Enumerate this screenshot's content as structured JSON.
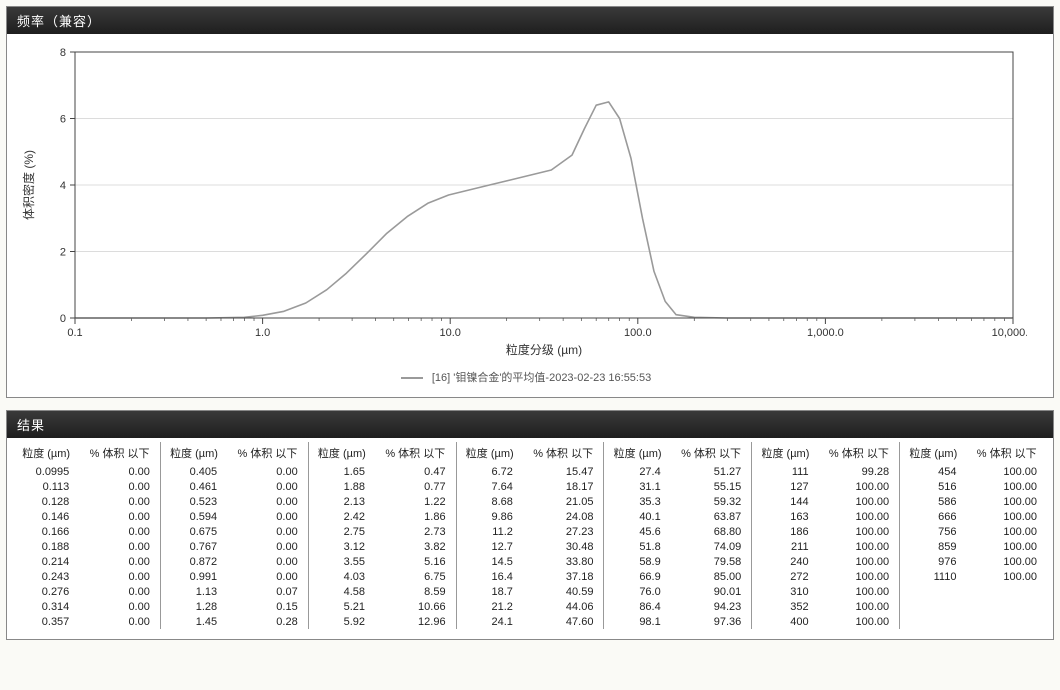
{
  "chart_panel": {
    "title": "频率（兼容）",
    "type": "line",
    "background_color": "#ffffff",
    "grid_color": "#dcdcdc",
    "axis_color": "#444444",
    "axis_font_size": 11,
    "label_font_size": 12,
    "ylabel": "体积密度 (%)",
    "xlabel": "粒度分级 (µm)",
    "ylim": [
      0,
      8
    ],
    "ytick_step": 2,
    "yticks": [
      0,
      2,
      4,
      6,
      8
    ],
    "xscale": "log",
    "xlim": [
      0.1,
      10000
    ],
    "xticks": [
      0.1,
      1.0,
      10.0,
      100.0,
      1000.0,
      10000.0
    ],
    "xtick_labels": [
      "0.1",
      "1.0",
      "10.0",
      "100.0",
      "1,000.0",
      "10,000.0"
    ],
    "series": {
      "label": "[16] '钼镍合金'的平均值-2023-02-23 16:55:53",
      "color": "#9a9a9a",
      "line_width": 1.6,
      "x": [
        0.1,
        0.5,
        0.8,
        1.0,
        1.3,
        1.7,
        2.2,
        2.8,
        3.6,
        4.6,
        5.9,
        7.6,
        9.8,
        12.6,
        16.2,
        20.9,
        26.9,
        34.6,
        44.6,
        52,
        60,
        70,
        80,
        92,
        106,
        122,
        140,
        160,
        200,
        300,
        1000,
        10000
      ],
      "y": [
        0,
        0,
        0.02,
        0.08,
        0.2,
        0.45,
        0.85,
        1.35,
        1.95,
        2.55,
        3.05,
        3.45,
        3.7,
        3.85,
        4.0,
        4.15,
        4.3,
        4.45,
        4.9,
        5.7,
        6.4,
        6.5,
        6.0,
        4.8,
        3.0,
        1.4,
        0.5,
        0.1,
        0.02,
        0,
        0,
        0
      ]
    },
    "legend_text": "[16] '钼镍合金'的平均值-2023-02-23 16:55:53"
  },
  "results_panel": {
    "title": "结果",
    "col_headers": [
      "粒度 (µm)",
      "% 体积 以下"
    ],
    "header_font_size": 11,
    "cell_font_size": 11,
    "border_color": "#999999",
    "columns": [
      [
        [
          "0.0995",
          "0.00"
        ],
        [
          "0.113",
          "0.00"
        ],
        [
          "0.128",
          "0.00"
        ],
        [
          "0.146",
          "0.00"
        ],
        [
          "0.166",
          "0.00"
        ],
        [
          "0.188",
          "0.00"
        ],
        [
          "0.214",
          "0.00"
        ],
        [
          "0.243",
          "0.00"
        ],
        [
          "0.276",
          "0.00"
        ],
        [
          "0.314",
          "0.00"
        ],
        [
          "0.357",
          "0.00"
        ]
      ],
      [
        [
          "0.405",
          "0.00"
        ],
        [
          "0.461",
          "0.00"
        ],
        [
          "0.523",
          "0.00"
        ],
        [
          "0.594",
          "0.00"
        ],
        [
          "0.675",
          "0.00"
        ],
        [
          "0.767",
          "0.00"
        ],
        [
          "0.872",
          "0.00"
        ],
        [
          "0.991",
          "0.00"
        ],
        [
          "1.13",
          "0.07"
        ],
        [
          "1.28",
          "0.15"
        ],
        [
          "1.45",
          "0.28"
        ]
      ],
      [
        [
          "1.65",
          "0.47"
        ],
        [
          "1.88",
          "0.77"
        ],
        [
          "2.13",
          "1.22"
        ],
        [
          "2.42",
          "1.86"
        ],
        [
          "2.75",
          "2.73"
        ],
        [
          "3.12",
          "3.82"
        ],
        [
          "3.55",
          "5.16"
        ],
        [
          "4.03",
          "6.75"
        ],
        [
          "4.58",
          "8.59"
        ],
        [
          "5.21",
          "10.66"
        ],
        [
          "5.92",
          "12.96"
        ]
      ],
      [
        [
          "6.72",
          "15.47"
        ],
        [
          "7.64",
          "18.17"
        ],
        [
          "8.68",
          "21.05"
        ],
        [
          "9.86",
          "24.08"
        ],
        [
          "11.2",
          "27.23"
        ],
        [
          "12.7",
          "30.48"
        ],
        [
          "14.5",
          "33.80"
        ],
        [
          "16.4",
          "37.18"
        ],
        [
          "18.7",
          "40.59"
        ],
        [
          "21.2",
          "44.06"
        ],
        [
          "24.1",
          "47.60"
        ]
      ],
      [
        [
          "27.4",
          "51.27"
        ],
        [
          "31.1",
          "55.15"
        ],
        [
          "35.3",
          "59.32"
        ],
        [
          "40.1",
          "63.87"
        ],
        [
          "45.6",
          "68.80"
        ],
        [
          "51.8",
          "74.09"
        ],
        [
          "58.9",
          "79.58"
        ],
        [
          "66.9",
          "85.00"
        ],
        [
          "76.0",
          "90.01"
        ],
        [
          "86.4",
          "94.23"
        ],
        [
          "98.1",
          "97.36"
        ]
      ],
      [
        [
          "111",
          "99.28"
        ],
        [
          "127",
          "100.00"
        ],
        [
          "144",
          "100.00"
        ],
        [
          "163",
          "100.00"
        ],
        [
          "186",
          "100.00"
        ],
        [
          "211",
          "100.00"
        ],
        [
          "240",
          "100.00"
        ],
        [
          "272",
          "100.00"
        ],
        [
          "310",
          "100.00"
        ],
        [
          "352",
          "100.00"
        ],
        [
          "400",
          "100.00"
        ]
      ],
      [
        [
          "454",
          "100.00"
        ],
        [
          "516",
          "100.00"
        ],
        [
          "586",
          "100.00"
        ],
        [
          "666",
          "100.00"
        ],
        [
          "756",
          "100.00"
        ],
        [
          "859",
          "100.00"
        ],
        [
          "976",
          "100.00"
        ],
        [
          "1110",
          "100.00"
        ]
      ]
    ]
  }
}
